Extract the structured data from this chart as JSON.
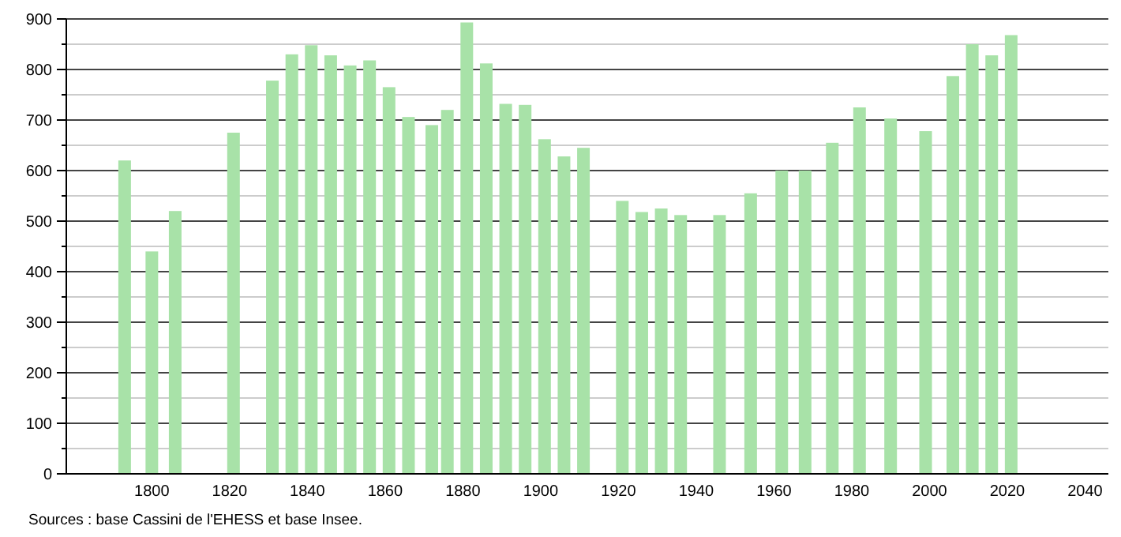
{
  "chart_data": {
    "type": "bar",
    "x": [
      1793,
      1800,
      1806,
      1821,
      1831,
      1836,
      1841,
      1846,
      1851,
      1856,
      1861,
      1866,
      1872,
      1876,
      1881,
      1886,
      1891,
      1896,
      1901,
      1906,
      1911,
      1921,
      1926,
      1931,
      1936,
      1946,
      1954,
      1962,
      1968,
      1975,
      1982,
      1990,
      1999,
      2006,
      2011,
      2016,
      2021
    ],
    "values": [
      620,
      440,
      520,
      675,
      778,
      830,
      848,
      828,
      808,
      818,
      765,
      706,
      690,
      720,
      893,
      812,
      732,
      730,
      662,
      628,
      645,
      540,
      518,
      525,
      512,
      512,
      555,
      600,
      600,
      655,
      725,
      703,
      678,
      787,
      850,
      828,
      868
    ],
    "color": "#a8e2a8",
    "xlim": [
      1778,
      2046
    ],
    "xticks": [
      1800,
      1820,
      1840,
      1860,
      1880,
      1900,
      1920,
      1940,
      1960,
      1980,
      2000,
      2020,
      2040
    ],
    "ylim": [
      0,
      900
    ],
    "yticks": [
      0,
      {
        "value": 50,
        "label": null
      },
      100,
      {
        "value": 150,
        "label": null
      },
      200,
      {
        "value": 250,
        "label": null
      },
      300,
      {
        "value": 350,
        "label": null
      },
      400,
      {
        "value": 450,
        "label": null
      },
      500,
      {
        "value": 550,
        "label": null
      },
      600,
      {
        "value": 650,
        "label": null
      },
      700,
      {
        "value": 750,
        "label": null
      },
      800,
      {
        "value": 850,
        "label": null
      },
      900
    ],
    "grid": "y",
    "annotations": [
      "Sources : base Cassini de l'EHESS et base Insee."
    ]
  }
}
